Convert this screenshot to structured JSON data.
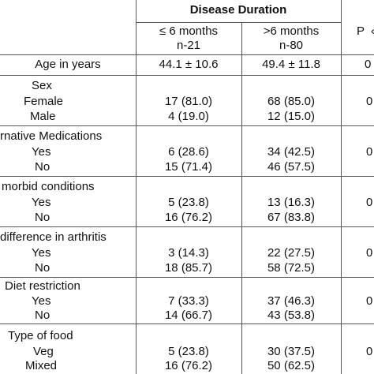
{
  "header": {
    "group_title": "Disease Duration",
    "col_a_line1": "≤ 6 months",
    "col_a_line2": "n-21",
    "col_b_line1": ">6 months",
    "col_b_line2": "n-80",
    "col_p": "P"
  },
  "rows": {
    "age": {
      "label": "Age in years",
      "a": "44.1 ± 10.6",
      "b": "49.4 ± 11.8",
      "p": "0"
    },
    "sex": {
      "label": "Sex"
    },
    "female": {
      "label": "Female",
      "a": "17 (81.0)",
      "b": "68 (85.0)",
      "p": "0"
    },
    "male": {
      "label": "Male",
      "a": "4 (19.0)",
      "b": "12 (15.0)"
    },
    "altmed": {
      "label": "rnative Medications"
    },
    "altmed_yes": {
      "label": "Yes",
      "a": "6 (28.6)",
      "b": "34 (42.5)",
      "p": "0"
    },
    "altmed_no": {
      "label": "No",
      "a": "15 (71.4)",
      "b": "46 (57.5)"
    },
    "comorbid": {
      "label": "morbid conditions"
    },
    "comorbid_yes": {
      "label": "Yes",
      "a": "5 (23.8)",
      "b": "13 (16.3)",
      "p": "0"
    },
    "comorbid_no": {
      "label": "No",
      "a": "16 (76.2)",
      "b": "67 (83.8)"
    },
    "diff": {
      "label": "difference in arthritis"
    },
    "diff_yes": {
      "label": "Yes",
      "a": "3 (14.3)",
      "b": "22 (27.5)",
      "p": "0"
    },
    "diff_no": {
      "label": "No",
      "a": "18 (85.7)",
      "b": "58 (72.5)"
    },
    "diet": {
      "label": "Diet restriction"
    },
    "diet_yes": {
      "label": "Yes",
      "a": "7 (33.3)",
      "b": "37 (46.3)",
      "p": "0"
    },
    "diet_no": {
      "label": "No",
      "a": "14 (66.7)",
      "b": "43 (53.8)"
    },
    "food": {
      "label": "Type of food"
    },
    "food_veg": {
      "label": "Veg",
      "a": "5 (23.8)",
      "b": "30 (37.5)",
      "p": "0"
    },
    "food_mixed": {
      "label": "Mixed",
      "a": "16 (76.2)",
      "b": "50 (62.5)"
    }
  }
}
